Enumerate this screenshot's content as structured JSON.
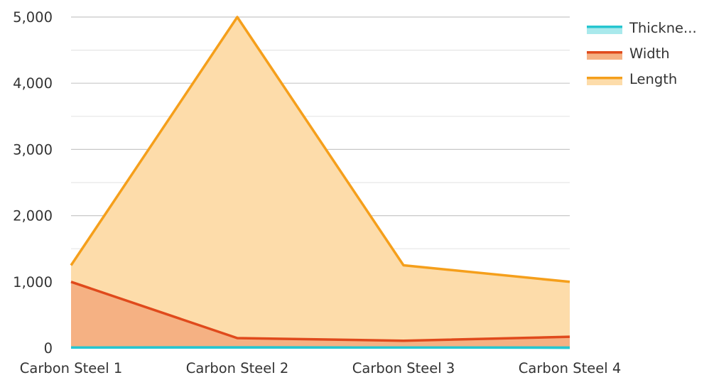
{
  "chart_data": {
    "type": "area",
    "categories": [
      "Carbon Steel 1",
      "Carbon Steel 2",
      "Carbon Steel 3",
      "Carbon Steel 4"
    ],
    "series": [
      {
        "name": "Thickne...",
        "values": [
          8,
          10,
          8,
          6
        ],
        "color": "#26c6d0",
        "fill": "#a9e9ec"
      },
      {
        "name": "Width",
        "values": [
          1000,
          150,
          110,
          170
        ],
        "color": "#e04a1c",
        "fill": "#f5b183"
      },
      {
        "name": "Length",
        "values": [
          1250,
          5000,
          1250,
          1000
        ],
        "color": "#f59f1b",
        "fill": "#fddcaa"
      }
    ],
    "y_ticks": [
      "0",
      "1,000",
      "2,000",
      "3,000",
      "4,000",
      "5,000"
    ],
    "ylim": [
      0,
      5000
    ],
    "grid": true,
    "legend_position": "top-right",
    "gridline_color": "#c8c8c8",
    "minor_gridline_color": "#e6e6e6",
    "axis_color": "#c8c8c8"
  }
}
